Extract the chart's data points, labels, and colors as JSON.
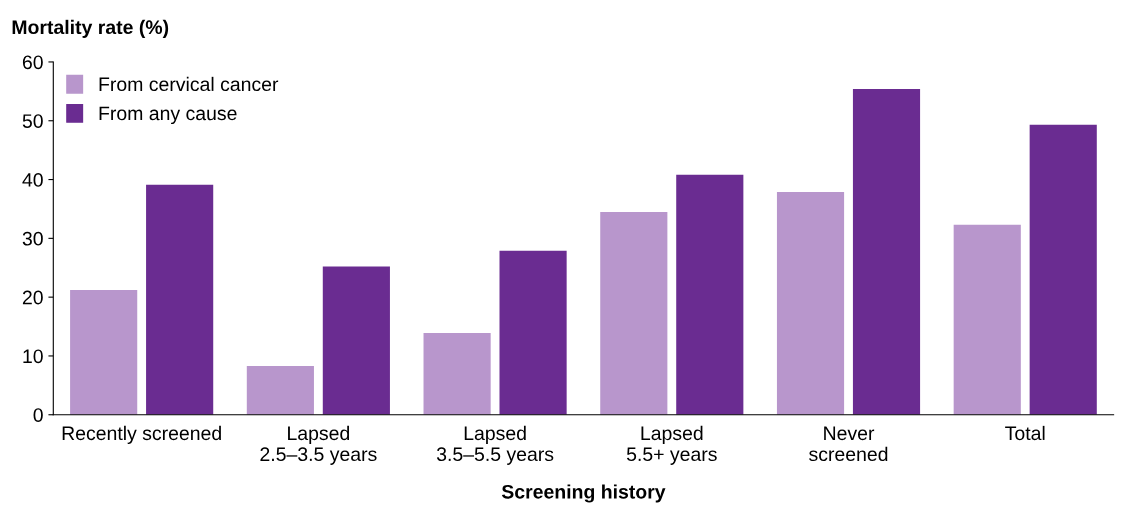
{
  "chart_data": {
    "type": "bar",
    "ylabel": "Mortality rate (%)",
    "xlabel": "Screening history",
    "categories": [
      "Recently screened",
      "Lapsed\n2.5–3.5 years",
      "Lapsed\n3.5–5.5 years",
      "Lapsed\n5.5+ years",
      "Never\nscreened",
      "Total"
    ],
    "series": [
      {
        "name": "From cervical cancer",
        "color": "#b896cc",
        "values": [
          21.2,
          8.3,
          13.9,
          34.5,
          37.9,
          32.3
        ]
      },
      {
        "name": "From any cause",
        "color": "#6a2c91",
        "values": [
          39.1,
          25.2,
          27.9,
          40.8,
          55.4,
          49.3
        ]
      }
    ],
    "ylim": [
      0,
      60
    ],
    "yticks": [
      0,
      10,
      20,
      30,
      40,
      50,
      60
    ],
    "grid": false,
    "legend": "top left"
  }
}
